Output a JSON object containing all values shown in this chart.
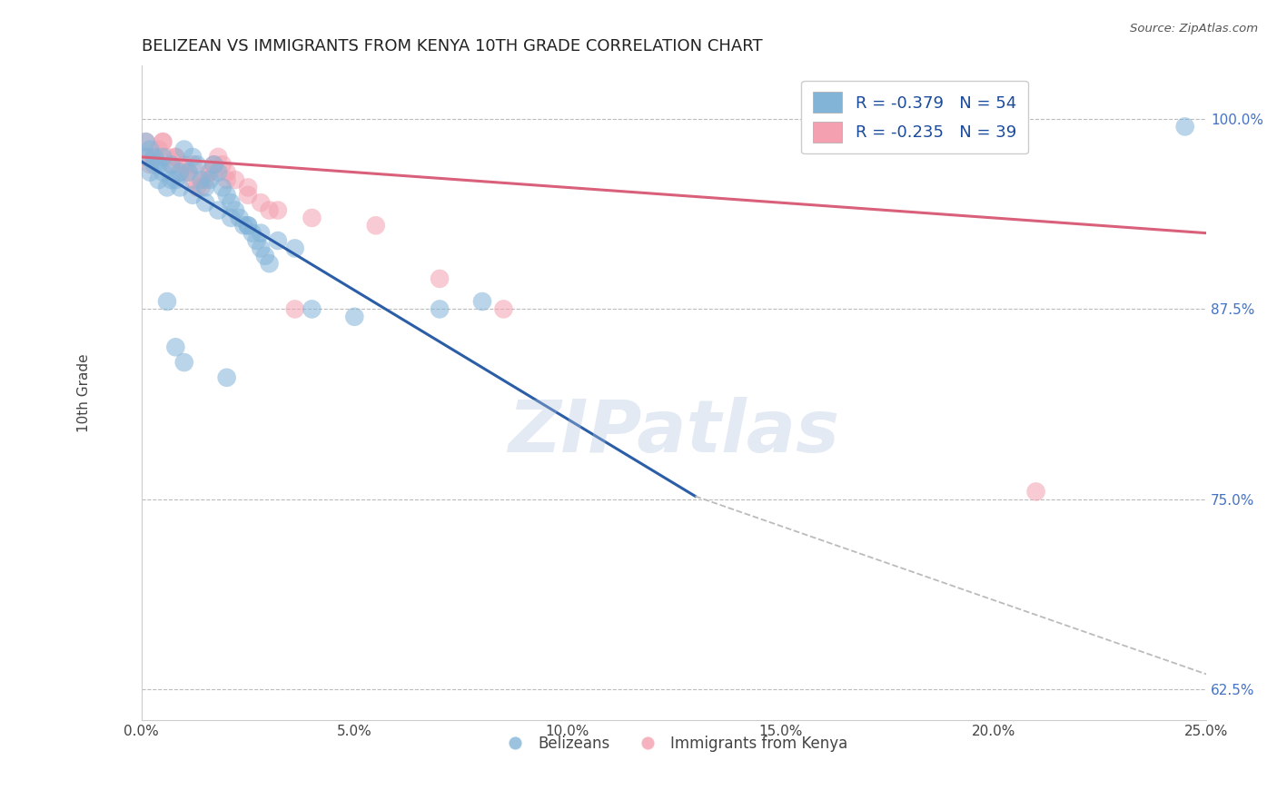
{
  "title": "BELIZEAN VS IMMIGRANTS FROM KENYA 10TH GRADE CORRELATION CHART",
  "source_text": "Source: ZipAtlas.com",
  "ylabel": "10th Grade",
  "xlabel": "",
  "xlim": [
    0.0,
    0.25
  ],
  "ylim": [
    0.605,
    1.035
  ],
  "xticks": [
    0.0,
    0.05,
    0.1,
    0.15,
    0.2,
    0.25
  ],
  "xtick_labels": [
    "0.0%",
    "5.0%",
    "10.0%",
    "15.0%",
    "20.0%",
    "25.0%"
  ],
  "yticks": [
    0.625,
    0.75,
    0.875,
    1.0
  ],
  "ytick_labels": [
    "62.5%",
    "75.0%",
    "87.5%",
    "100.0%"
  ],
  "blue_color": "#82B4D8",
  "pink_color": "#F4A0B0",
  "blue_line_color": "#2B5EA7",
  "pink_line_color": "#D9607A",
  "legend_blue_text": "R = -0.379   N = 54",
  "legend_pink_text": "R = -0.235   N = 39",
  "legend_label_blue": "Belizeans",
  "legend_label_pink": "Immigrants from Kenya",
  "watermark": "ZIPatlas",
  "grid_color": "#BBBBBB",
  "blue_scatter_x": [
    0.001,
    0.002,
    0.003,
    0.004,
    0.005,
    0.006,
    0.007,
    0.008,
    0.009,
    0.01,
    0.011,
    0.012,
    0.013,
    0.014,
    0.015,
    0.016,
    0.017,
    0.018,
    0.019,
    0.02,
    0.021,
    0.022,
    0.023,
    0.024,
    0.025,
    0.026,
    0.027,
    0.028,
    0.029,
    0.03,
    0.001,
    0.002,
    0.003,
    0.004,
    0.005,
    0.007,
    0.009,
    0.012,
    0.015,
    0.018,
    0.021,
    0.025,
    0.028,
    0.032,
    0.036,
    0.04,
    0.05,
    0.07,
    0.02,
    0.01,
    0.006,
    0.008,
    0.245,
    0.08
  ],
  "blue_scatter_y": [
    0.975,
    0.965,
    0.97,
    0.96,
    0.975,
    0.955,
    0.97,
    0.96,
    0.965,
    0.98,
    0.965,
    0.975,
    0.97,
    0.96,
    0.955,
    0.96,
    0.97,
    0.965,
    0.955,
    0.95,
    0.945,
    0.94,
    0.935,
    0.93,
    0.93,
    0.925,
    0.92,
    0.915,
    0.91,
    0.905,
    0.985,
    0.98,
    0.975,
    0.97,
    0.965,
    0.96,
    0.955,
    0.95,
    0.945,
    0.94,
    0.935,
    0.93,
    0.925,
    0.92,
    0.915,
    0.875,
    0.87,
    0.875,
    0.83,
    0.84,
    0.88,
    0.85,
    0.995,
    0.88
  ],
  "pink_scatter_x": [
    0.001,
    0.002,
    0.003,
    0.004,
    0.005,
    0.006,
    0.007,
    0.008,
    0.009,
    0.01,
    0.011,
    0.012,
    0.013,
    0.014,
    0.015,
    0.016,
    0.017,
    0.018,
    0.019,
    0.02,
    0.022,
    0.025,
    0.028,
    0.032,
    0.036,
    0.001,
    0.003,
    0.005,
    0.008,
    0.012,
    0.016,
    0.02,
    0.025,
    0.03,
    0.04,
    0.055,
    0.07,
    0.21,
    0.085
  ],
  "pink_scatter_y": [
    0.975,
    0.97,
    0.975,
    0.98,
    0.985,
    0.975,
    0.97,
    0.975,
    0.965,
    0.97,
    0.965,
    0.96,
    0.955,
    0.955,
    0.96,
    0.965,
    0.97,
    0.975,
    0.97,
    0.965,
    0.96,
    0.955,
    0.945,
    0.94,
    0.875,
    0.985,
    0.975,
    0.985,
    0.975,
    0.97,
    0.965,
    0.96,
    0.95,
    0.94,
    0.935,
    0.93,
    0.895,
    0.755,
    0.875
  ],
  "blue_line_x": [
    0.0,
    0.13
  ],
  "blue_line_y": [
    0.972,
    0.752
  ],
  "pink_line_x": [
    0.0,
    0.25
  ],
  "pink_line_y": [
    0.975,
    0.925
  ],
  "dashed_line_x": [
    0.13,
    0.25
  ],
  "dashed_line_y": [
    0.752,
    0.635
  ]
}
